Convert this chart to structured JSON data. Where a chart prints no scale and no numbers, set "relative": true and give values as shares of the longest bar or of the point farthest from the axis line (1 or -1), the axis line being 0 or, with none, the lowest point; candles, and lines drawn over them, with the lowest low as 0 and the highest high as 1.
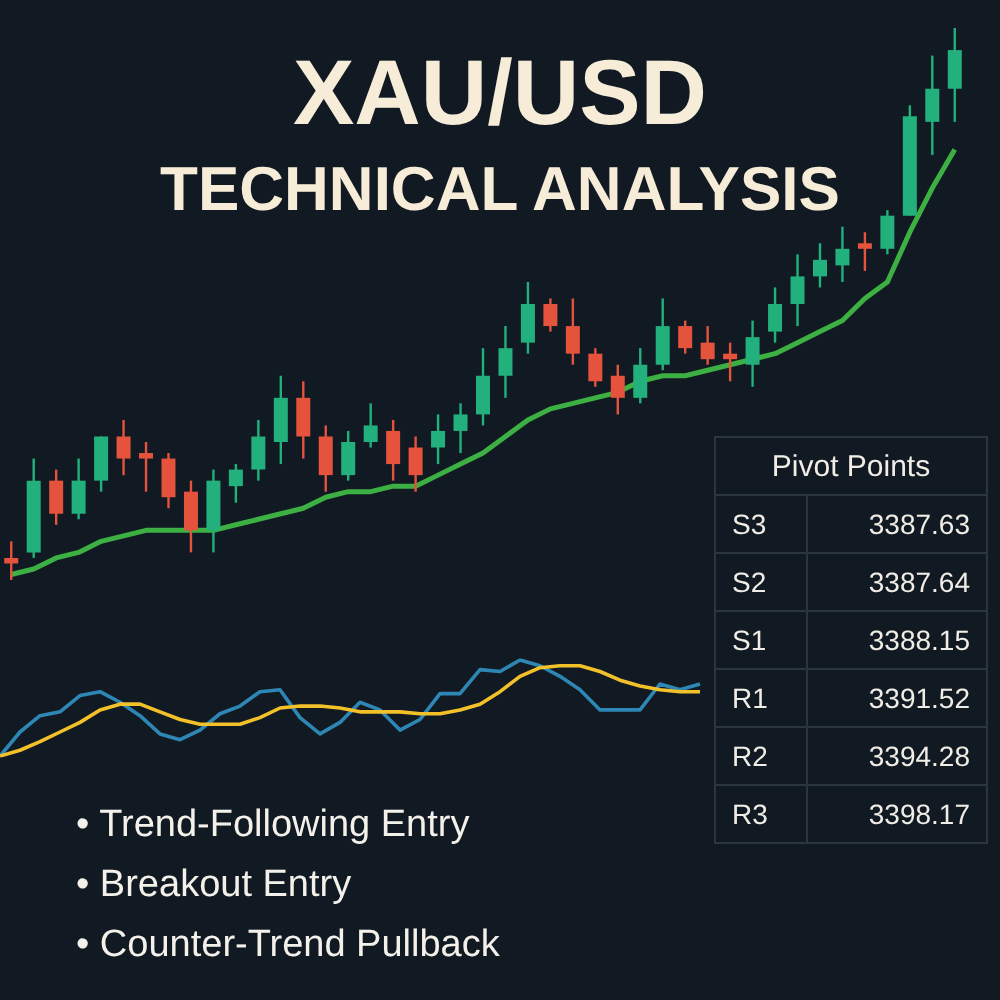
{
  "chart_data": [
    {
      "type": "candlestick",
      "title": "XAU/USD",
      "subtitle": "TECHNICAL ANALYSIS",
      "relative": true,
      "tick_labels": false,
      "categories": [
        null,
        null,
        null,
        null,
        null,
        null,
        null,
        null,
        null,
        null,
        null,
        null,
        null,
        null,
        null,
        null,
        null,
        null,
        null,
        null,
        null,
        null,
        null,
        null,
        null,
        null,
        null,
        null,
        null,
        null,
        null,
        null,
        null,
        null,
        null,
        null,
        null,
        null,
        null,
        null,
        null,
        null,
        null
      ],
      "ohlc": [
        [
          0.04,
          0.07,
          0,
          0.03
        ],
        [
          0.05,
          0.22,
          0.04,
          0.18
        ],
        [
          0.18,
          0.2,
          0.1,
          0.12
        ],
        [
          0.12,
          0.22,
          0.11,
          0.18
        ],
        [
          0.18,
          0.26,
          0.16,
          0.26
        ],
        [
          0.26,
          0.29,
          0.19,
          0.22
        ],
        [
          0.23,
          0.25,
          0.16,
          0.22
        ],
        [
          0.22,
          0.23,
          0.13,
          0.15
        ],
        [
          0.16,
          0.18,
          0.05,
          0.09
        ],
        [
          0.09,
          0.2,
          0.05,
          0.18
        ],
        [
          0.17,
          0.21,
          0.14,
          0.2
        ],
        [
          0.2,
          0.29,
          0.18,
          0.26
        ],
        [
          0.25,
          0.37,
          0.21,
          0.33
        ],
        [
          0.33,
          0.36,
          0.22,
          0.26
        ],
        [
          0.26,
          0.28,
          0.16,
          0.19
        ],
        [
          0.19,
          0.27,
          0.18,
          0.25
        ],
        [
          0.25,
          0.32,
          0.24,
          0.28
        ],
        [
          0.27,
          0.29,
          0.18,
          0.21
        ],
        [
          0.24,
          0.26,
          0.16,
          0.19
        ],
        [
          0.24,
          0.3,
          0.21,
          0.27
        ],
        [
          0.27,
          0.32,
          0.23,
          0.3
        ],
        [
          0.3,
          0.42,
          0.28,
          0.37
        ],
        [
          0.37,
          0.46,
          0.33,
          0.42
        ],
        [
          0.43,
          0.54,
          0.41,
          0.5
        ],
        [
          0.5,
          0.51,
          0.45,
          0.46
        ],
        [
          0.46,
          0.51,
          0.39,
          0.41
        ],
        [
          0.41,
          0.42,
          0.35,
          0.36
        ],
        [
          0.37,
          0.39,
          0.3,
          0.33
        ],
        [
          0.33,
          0.42,
          0.32,
          0.39
        ],
        [
          0.39,
          0.51,
          0.38,
          0.46
        ],
        [
          0.46,
          0.47,
          0.41,
          0.42
        ],
        [
          0.43,
          0.46,
          0.39,
          0.4
        ],
        [
          0.41,
          0.43,
          0.36,
          0.4
        ],
        [
          0.39,
          0.47,
          0.35,
          0.44
        ],
        [
          0.45,
          0.53,
          0.43,
          0.5
        ],
        [
          0.5,
          0.59,
          0.46,
          0.55
        ],
        [
          0.55,
          0.61,
          0.53,
          0.58
        ],
        [
          0.57,
          0.64,
          0.54,
          0.6
        ],
        [
          0.61,
          0.63,
          0.56,
          0.6
        ],
        [
          0.6,
          0.67,
          0.59,
          0.66
        ],
        [
          0.66,
          0.86,
          0.66,
          0.84
        ],
        [
          0.83,
          0.95,
          0.77,
          0.89
        ],
        [
          0.89,
          1.0,
          0.83,
          0.96
        ]
      ],
      "colors": [
        "#e5533d",
        "#22b07d",
        "#e5533d",
        "#22b07d",
        "#22b07d",
        "#e5533d",
        "#e5533d",
        "#e5533d",
        "#e5533d",
        "#22b07d",
        "#22b07d",
        "#22b07d",
        "#22b07d",
        "#e5533d",
        "#e5533d",
        "#22b07d",
        "#22b07d",
        "#e5533d",
        "#e5533d",
        "#22b07d",
        "#22b07d",
        "#22b07d",
        "#22b07d",
        "#22b07d",
        "#e5533d",
        "#e5533d",
        "#e5533d",
        "#e5533d",
        "#22b07d",
        "#22b07d",
        "#e5533d",
        "#e5533d",
        "#e5533d",
        "#22b07d",
        "#22b07d",
        "#22b07d",
        "#22b07d",
        "#22b07d",
        "#e5533d",
        "#22b07d",
        "#22b07d",
        "#22b07d",
        "#22b07d"
      ],
      "series": [
        {
          "type": "line",
          "color": "#3cb043",
          "values": [
            0.01,
            0.02,
            0.04,
            0.05,
            0.07,
            0.08,
            0.09,
            0.09,
            0.09,
            0.09,
            0.1,
            0.11,
            0.12,
            0.13,
            0.15,
            0.16,
            0.16,
            0.17,
            0.17,
            0.19,
            0.21,
            0.23,
            0.26,
            0.29,
            0.31,
            0.32,
            0.33,
            0.34,
            0.36,
            0.37,
            0.37,
            0.38,
            0.39,
            0.4,
            0.41,
            0.43,
            0.45,
            0.47,
            0.51,
            0.54,
            0.63,
            0.71,
            0.78
          ]
        }
      ],
      "annotations": [
        "• Trend-Following Entry",
        "• Breakout Entry",
        "• Counter-Trend Pullback"
      ]
    },
    {
      "type": "line",
      "relative": true,
      "tick_labels": false,
      "categories": [
        null,
        null,
        null,
        null,
        null,
        null,
        null,
        null,
        null,
        null,
        null,
        null,
        null,
        null,
        null,
        null,
        null,
        null,
        null,
        null,
        null,
        null,
        null,
        null,
        null,
        null,
        null,
        null,
        null,
        null,
        null,
        null,
        null,
        null,
        null,
        null
      ],
      "series": [
        {
          "color": "#2e86b5",
          "values": [
            0,
            0.25,
            0.42,
            0.46,
            0.63,
            0.67,
            0.56,
            0.42,
            0.23,
            0.17,
            0.27,
            0.44,
            0.52,
            0.67,
            0.69,
            0.4,
            0.23,
            0.35,
            0.56,
            0.48,
            0.27,
            0.38,
            0.65,
            0.65,
            0.9,
            0.88,
            1.0,
            0.94,
            0.83,
            0.69,
            0.48,
            0.48,
            0.48,
            0.75,
            0.69,
            0.75
          ]
        },
        {
          "color": "#f2c029",
          "values": [
            0,
            0.06,
            0.15,
            0.25,
            0.35,
            0.48,
            0.54,
            0.54,
            0.46,
            0.38,
            0.33,
            0.33,
            0.33,
            0.4,
            0.5,
            0.52,
            0.52,
            0.5,
            0.46,
            0.46,
            0.46,
            0.44,
            0.44,
            0.48,
            0.54,
            0.67,
            0.83,
            0.92,
            0.94,
            0.94,
            0.88,
            0.79,
            0.73,
            0.69,
            0.67,
            0.67
          ]
        }
      ]
    },
    {
      "type": "other",
      "title": "Pivot Points",
      "categories": [
        "S3",
        "S2",
        "S1",
        "R1",
        "R2",
        "R3"
      ],
      "values": [
        3387.63,
        3387.64,
        3388.15,
        3391.52,
        3394.28,
        3398.17
      ],
      "data_labels": true
    }
  ]
}
